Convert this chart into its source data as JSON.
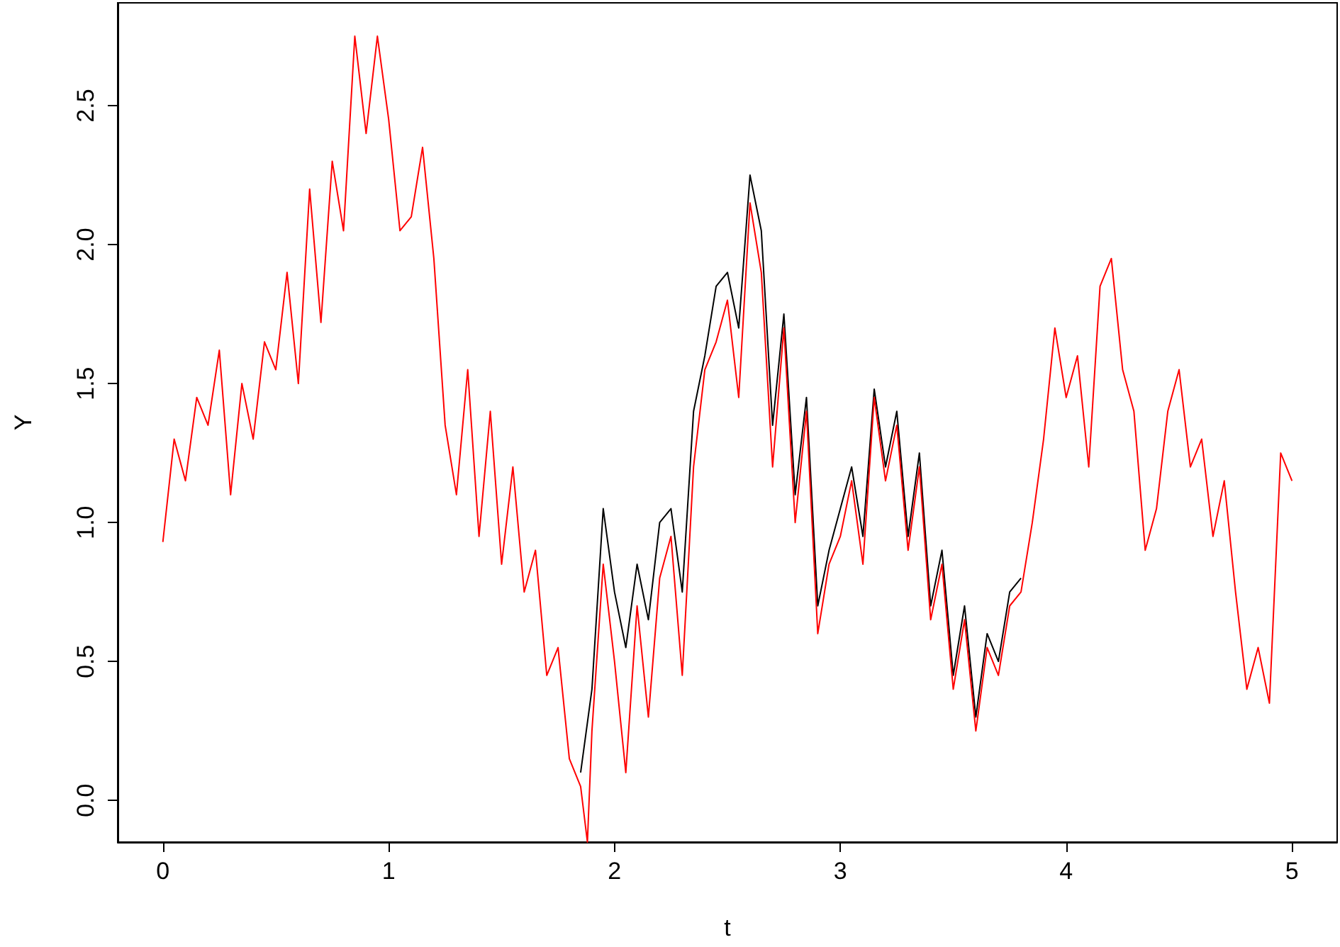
{
  "chart_data": {
    "type": "line",
    "xlabel": "t",
    "ylabel": "Y",
    "xlim": [
      -0.2,
      5.2
    ],
    "ylim": [
      -0.15,
      2.87
    ],
    "xticks": [
      0,
      1,
      2,
      3,
      4,
      5
    ],
    "yticks": [
      {
        "value": 0,
        "label": "0.0"
      },
      0.5,
      {
        "value": 1,
        "label": "1.0"
      },
      1.5,
      {
        "value": 2,
        "label": "2.0"
      },
      2.5
    ],
    "grid": false,
    "marker": "none",
    "line_style": "solid",
    "series": [
      {
        "color": "#000000",
        "x": [
          1.85,
          1.9,
          1.95,
          2.0,
          2.05,
          2.1,
          2.15,
          2.2,
          2.25,
          2.3,
          2.35,
          2.4,
          2.45,
          2.5,
          2.55,
          2.6,
          2.65,
          2.7,
          2.75,
          2.8,
          2.85,
          2.9,
          2.95,
          3.0,
          3.05,
          3.1,
          3.15,
          3.2,
          3.25,
          3.3,
          3.35,
          3.4,
          3.45,
          3.5,
          3.55,
          3.6,
          3.65,
          3.7,
          3.75,
          3.8
        ],
        "values": [
          0.1,
          0.4,
          1.05,
          0.75,
          0.55,
          0.85,
          0.65,
          1.0,
          1.05,
          0.75,
          1.4,
          1.6,
          1.85,
          1.9,
          1.7,
          2.25,
          2.05,
          1.35,
          1.75,
          1.1,
          1.45,
          0.7,
          0.9,
          1.05,
          1.2,
          0.95,
          1.48,
          1.2,
          1.4,
          0.95,
          1.25,
          0.7,
          0.9,
          0.45,
          0.7,
          0.3,
          0.6,
          0.5,
          0.75,
          0.8
        ]
      },
      {
        "color": "#ff0000",
        "x": [
          0,
          0.05,
          0.1,
          0.15,
          0.2,
          0.25,
          0.3,
          0.35,
          0.4,
          0.45,
          0.5,
          0.55,
          0.6,
          0.65,
          0.7,
          0.75,
          0.8,
          0.85,
          0.9,
          0.95,
          1.0,
          1.05,
          1.1,
          1.15,
          1.2,
          1.25,
          1.3,
          1.35,
          1.4,
          1.45,
          1.5,
          1.55,
          1.6,
          1.65,
          1.7,
          1.75,
          1.8,
          1.85,
          1.88,
          1.9,
          1.95,
          2.0,
          2.05,
          2.1,
          2.15,
          2.2,
          2.25,
          2.3,
          2.35,
          2.4,
          2.45,
          2.5,
          2.55,
          2.6,
          2.65,
          2.7,
          2.75,
          2.8,
          2.85,
          2.9,
          2.95,
          3.0,
          3.05,
          3.1,
          3.15,
          3.2,
          3.25,
          3.3,
          3.35,
          3.4,
          3.45,
          3.5,
          3.55,
          3.6,
          3.65,
          3.7,
          3.75,
          3.8,
          3.85,
          3.9,
          3.95,
          4.0,
          4.05,
          4.1,
          4.15,
          4.2,
          4.25,
          4.3,
          4.35,
          4.4,
          4.45,
          4.5,
          4.55,
          4.6,
          4.65,
          4.7,
          4.75,
          4.8,
          4.85,
          4.9,
          4.95,
          5.0
        ],
        "values": [
          0.93,
          1.3,
          1.15,
          1.45,
          1.35,
          1.62,
          1.1,
          1.5,
          1.3,
          1.65,
          1.55,
          1.9,
          1.5,
          2.2,
          1.72,
          2.3,
          2.05,
          2.75,
          2.4,
          2.75,
          2.45,
          2.05,
          2.1,
          2.35,
          1.95,
          1.35,
          1.1,
          1.55,
          0.95,
          1.4,
          0.85,
          1.2,
          0.75,
          0.9,
          0.45,
          0.55,
          0.15,
          0.05,
          -0.15,
          0.25,
          0.85,
          0.5,
          0.1,
          0.7,
          0.3,
          0.8,
          0.95,
          0.45,
          1.2,
          1.55,
          1.65,
          1.8,
          1.45,
          2.15,
          1.9,
          1.2,
          1.7,
          1.0,
          1.4,
          0.6,
          0.85,
          0.95,
          1.15,
          0.85,
          1.45,
          1.15,
          1.35,
          0.9,
          1.2,
          0.65,
          0.85,
          0.4,
          0.65,
          0.25,
          0.55,
          0.45,
          0.7,
          0.75,
          1.0,
          1.3,
          1.7,
          1.45,
          1.6,
          1.2,
          1.85,
          1.95,
          1.55,
          1.4,
          0.9,
          1.05,
          1.4,
          1.55,
          1.2,
          1.3,
          0.95,
          1.15,
          0.75,
          0.4,
          0.55,
          0.35,
          1.25,
          1.15
        ]
      }
    ]
  }
}
